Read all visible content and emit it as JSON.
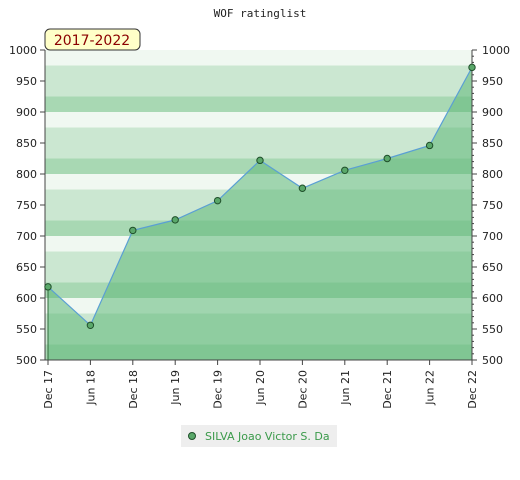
{
  "chart_data": {
    "type": "area",
    "title": "WOF ratinglist",
    "period_label": "2017-2022",
    "x_ticks": [
      "Dec 17",
      "Jun 18",
      "Dec 18",
      "Jun 19",
      "Dec 19",
      "Jun 20",
      "Dec 20",
      "Jun 21",
      "Dec 21",
      "Jun 22",
      "Dec 22"
    ],
    "series": [
      {
        "name": "SILVA Joao Victor S. Da",
        "values": [
          618,
          556,
          709,
          726,
          757,
          822,
          777,
          806,
          825,
          846,
          972
        ]
      }
    ],
    "ylim": [
      500,
      1000
    ],
    "y_ticks": [
      500,
      550,
      600,
      650,
      700,
      750,
      800,
      850,
      900,
      950,
      1000
    ],
    "y_axis_both_sides": true,
    "legend_position": "bottom",
    "colors": {
      "line": "#5a9fd4",
      "marker_fill": "#5aa86a",
      "marker_edge": "#1f4f2a",
      "area_fill": "#5fb878",
      "band_light": "#f0f8f1",
      "band_mid": "#cbe7d1",
      "band_dark": "#a8d8b3",
      "legend_text": "#3a9a4a",
      "period_bg": "#ffffc8",
      "period_text": "#8b0000"
    }
  }
}
